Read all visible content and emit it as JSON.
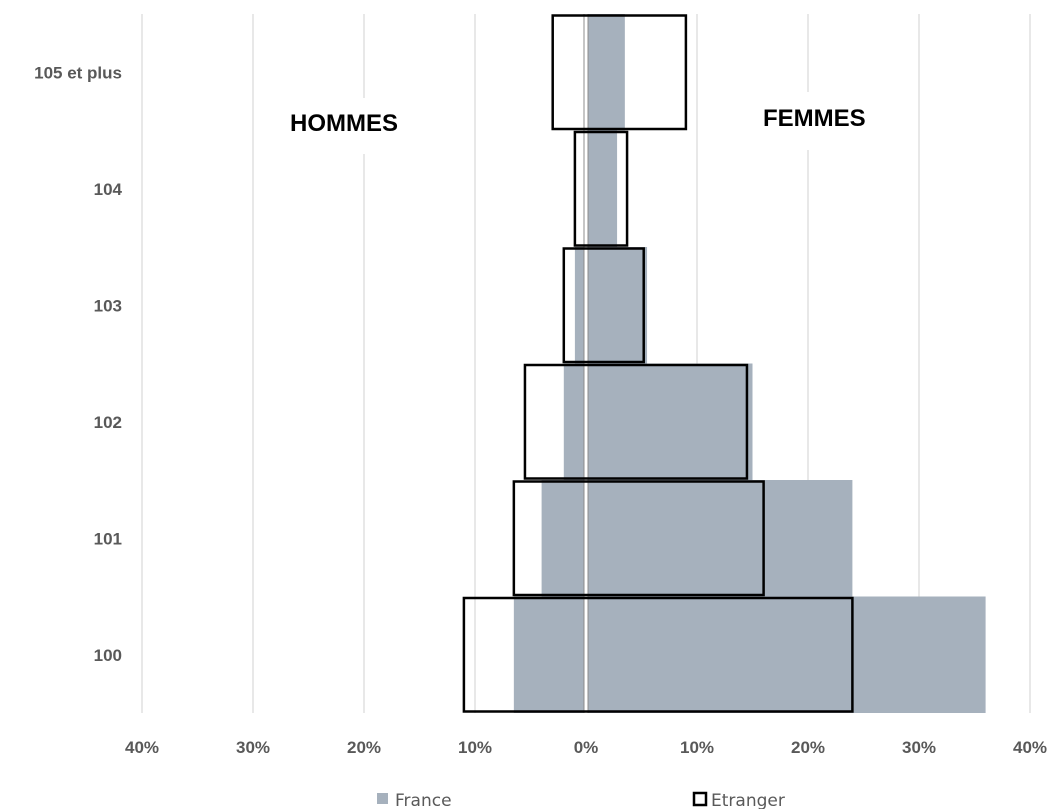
{
  "chart_data": {
    "type": "bar",
    "orientation": "horizontal",
    "categories": [
      "105 et plus",
      "104",
      "103",
      "102",
      "101",
      "100"
    ],
    "series": [
      {
        "name": "France",
        "style": "filled",
        "color": "#a6b1bd",
        "hommes": [
          0,
          0,
          1,
          2,
          4,
          6.5
        ],
        "femmes": [
          3.5,
          2.8,
          5.5,
          15,
          24,
          36
        ]
      },
      {
        "name": "Etranger",
        "style": "outline",
        "color": "#000000",
        "hommes": [
          3,
          1,
          2,
          5.5,
          6.5,
          11
        ],
        "femmes": [
          9,
          3.7,
          5.2,
          14.5,
          16,
          24
        ]
      }
    ],
    "section_labels": {
      "left": "HOMMES",
      "right": "FEMMES"
    },
    "x_ticks": [
      "40%",
      "30%",
      "20%",
      "10%",
      "0%",
      "10%",
      "20%",
      "30%",
      "40%"
    ],
    "xlim": [
      -40,
      40
    ],
    "grid": true,
    "legend_position": "bottom"
  }
}
